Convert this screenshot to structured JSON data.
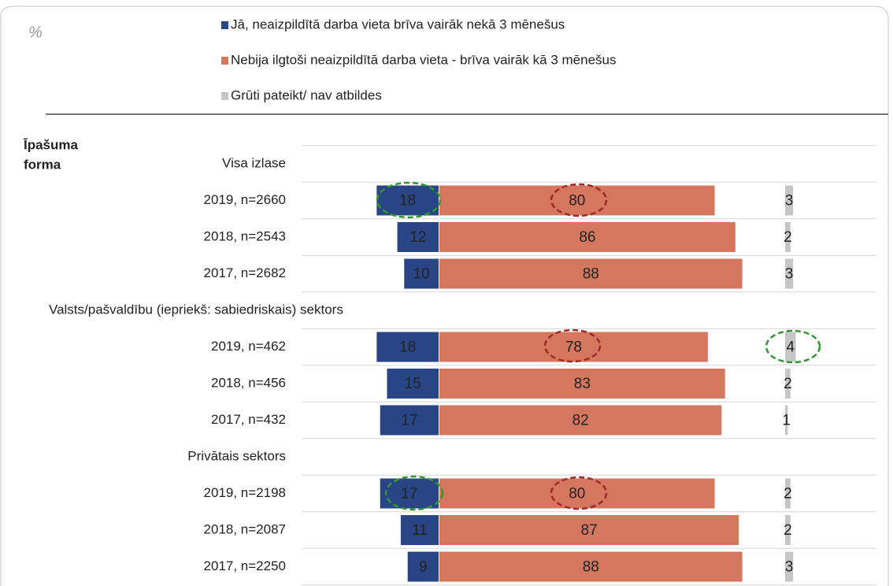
{
  "chart_data": {
    "type": "bar",
    "axis_label": "%",
    "group_label": "Īpašuma forma",
    "categories": [
      "Visa izlase",
      "2019, n=2660",
      "2018, n=2543",
      "2017, n=2682",
      "Valsts/pašvaldību (iepriekš: sabiedriskais) sektors",
      "2019, n=462",
      "2018, n=456",
      "2017, n=432",
      "Privātais sektors",
      "2019, n=2198",
      "2018, n=2087",
      "2017, n=2250"
    ],
    "series": [
      {
        "name": "Jā, neaizpildītā darba vieta brīva vairāk nekā 3 mēnešus",
        "color": "#2a4586",
        "values": [
          null,
          18,
          12,
          10,
          null,
          18,
          15,
          17,
          null,
          17,
          11,
          9
        ]
      },
      {
        "name": "Nebija ilgtoši neaizpildītā darba vieta - brīva vairāk kā 3 mēnešus",
        "color": "#d5775f",
        "values": [
          null,
          80,
          86,
          88,
          null,
          78,
          83,
          82,
          null,
          80,
          87,
          88
        ]
      },
      {
        "name": "Grūti pateikt/ nav atbildes",
        "color": "#c6c6c6",
        "values": [
          null,
          3,
          2,
          3,
          null,
          4,
          2,
          1,
          null,
          2,
          2,
          3
        ]
      }
    ]
  }
}
